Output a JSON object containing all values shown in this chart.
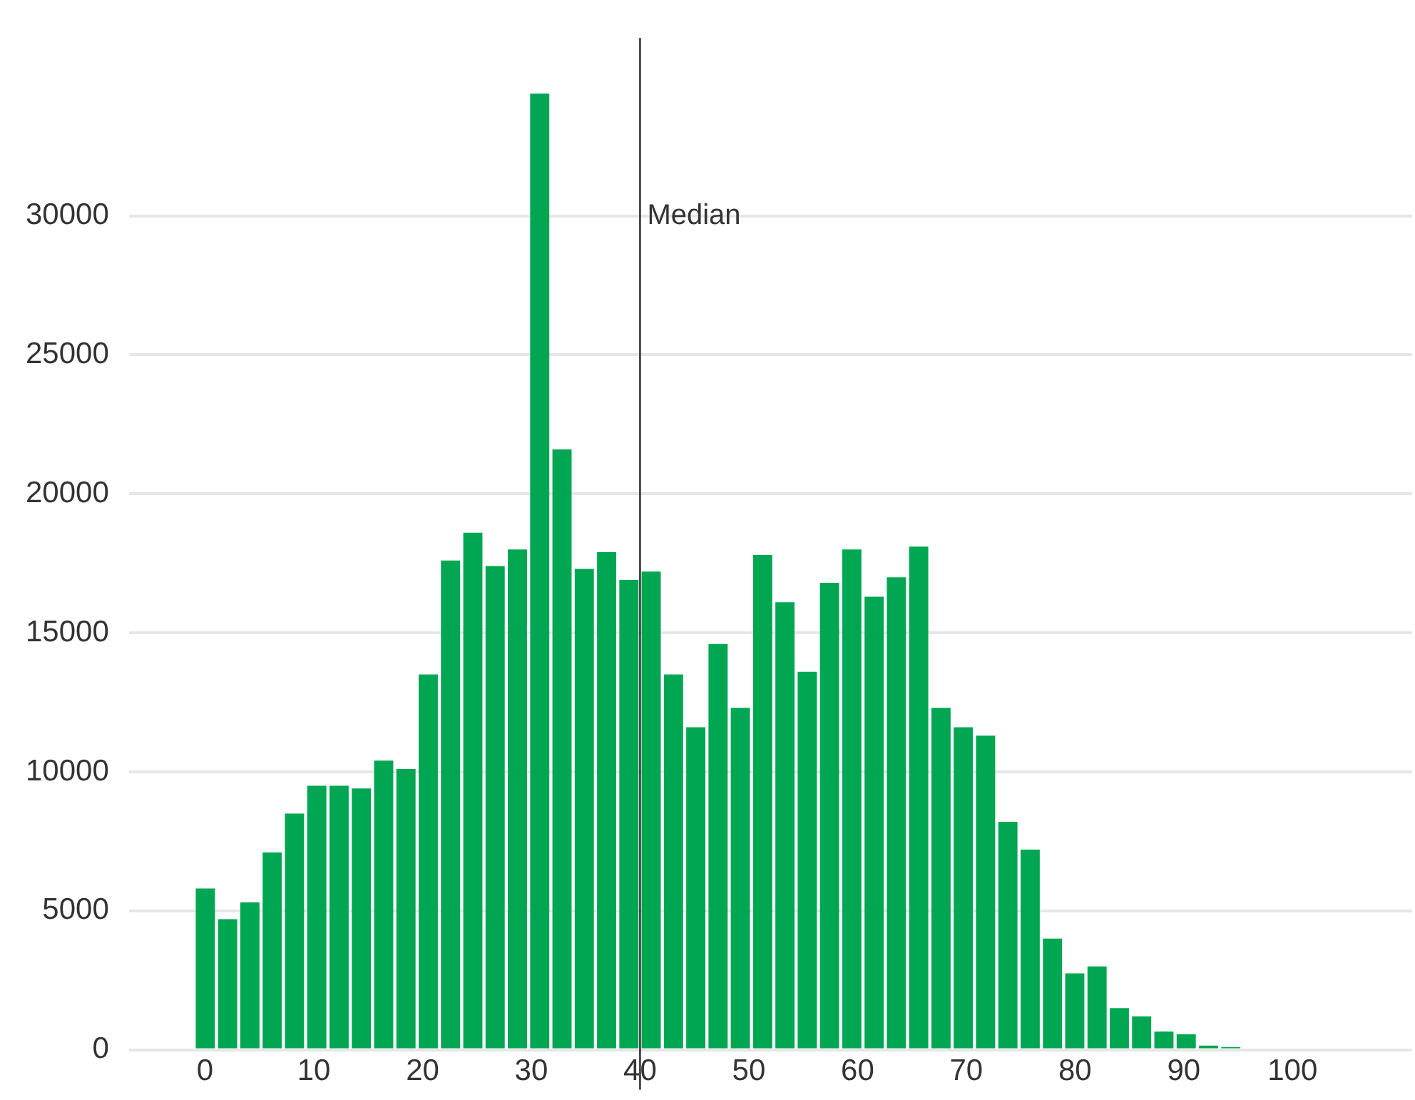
{
  "chart_data": {
    "type": "histogram",
    "bins": [
      -1,
      1.05,
      3.1,
      5.15,
      7.2,
      9.25,
      11.3,
      13.35,
      15.4,
      17.45,
      19.5,
      21.55,
      23.6,
      25.65,
      27.7,
      29.75,
      31.8,
      33.85,
      35.9,
      37.95,
      40,
      42.05,
      44.1,
      46.15,
      48.2,
      50.25,
      52.3,
      54.35,
      56.4,
      58.45,
      60.5,
      62.55,
      64.6,
      66.65,
      68.7,
      70.75,
      72.8,
      74.85,
      76.9,
      78.95,
      81,
      83.05,
      85.1,
      87.15,
      89.2,
      91.25,
      93.3,
      95.35
    ],
    "values": [
      5800,
      4700,
      5300,
      7100,
      8500,
      9500,
      9500,
      9400,
      10400,
      10100,
      13500,
      17600,
      18600,
      17400,
      18000,
      34400,
      21600,
      17300,
      17900,
      16900,
      17200,
      13500,
      11600,
      14600,
      12300,
      17800,
      16100,
      13600,
      16800,
      18000,
      16300,
      17000,
      18100,
      12300,
      11600,
      11300,
      8200,
      7200,
      4000,
      2750,
      3000,
      1500,
      1200,
      660,
      560,
      150,
      100
    ],
    "color": "#00a651",
    "xlim": [
      -7,
      111
    ],
    "xticks": [
      0,
      10,
      20,
      30,
      40,
      50,
      60,
      70,
      80,
      90,
      100
    ],
    "ylim": [
      0,
      36400
    ],
    "yticks": [
      0,
      5000,
      10000,
      15000,
      20000,
      25000,
      30000
    ],
    "grid": "y",
    "ref_lines": [
      {
        "axis": "x",
        "value": 40,
        "label": "Median",
        "color": "#333333"
      }
    ]
  }
}
